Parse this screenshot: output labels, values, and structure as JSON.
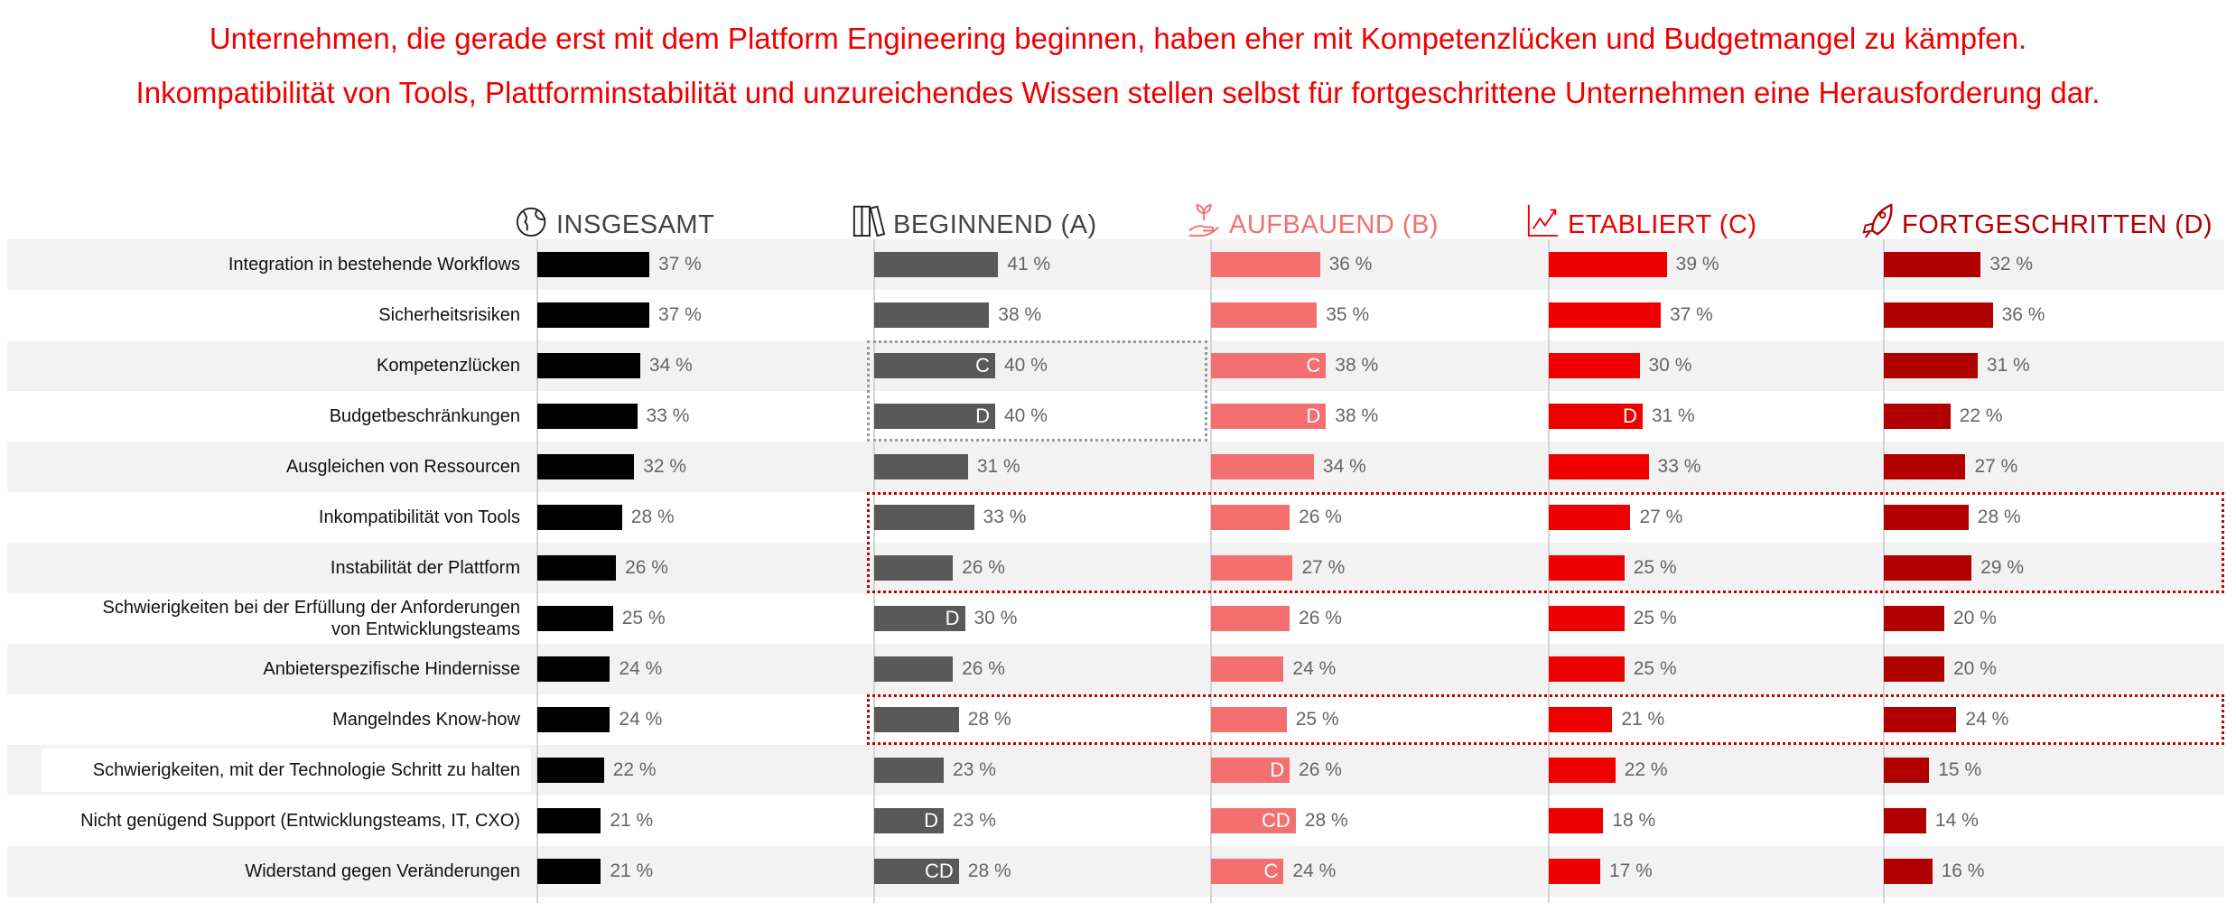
{
  "title_lines": [
    "Unternehmen, die gerade erst mit dem Platform Engineering beginnen, haben eher mit Kompetenzlücken und Budgetmangel zu kämpfen.",
    "Inkompatibilität von Tools, Plattforminstabilität und unzureichendes Wissen stellen selbst für fortgeschrittene Unternehmen eine Herausforderung dar."
  ],
  "colors": {
    "title": "#ee0000",
    "insgesamt": "#000000",
    "beginnend": "#595959",
    "aufbauend": "#f47070",
    "etabliert": "#ee0000",
    "fortgeschritten": "#b00000",
    "row_stripe": "#f2f2f2"
  },
  "chart_data": {
    "type": "bar",
    "orientation": "horizontal",
    "value_suffix": " %",
    "series": [
      {
        "name": "INSGESAMT",
        "icon": "globe-icon",
        "color": "#000000",
        "values": [
          37,
          37,
          34,
          33,
          32,
          28,
          26,
          25,
          24,
          24,
          22,
          21,
          21
        ],
        "markers": [
          "",
          "",
          "",
          "",
          "",
          "",
          "",
          "",
          "",
          "",
          "",
          "",
          ""
        ]
      },
      {
        "name": "BEGINNEND (A)",
        "icon": "books-icon",
        "color": "#595959",
        "values": [
          41,
          38,
          40,
          40,
          31,
          33,
          26,
          30,
          26,
          28,
          23,
          23,
          28
        ],
        "markers": [
          "",
          "",
          "C",
          "D",
          "",
          "",
          "",
          "D",
          "",
          "",
          "",
          "D",
          "CD"
        ]
      },
      {
        "name": "AUFBAUEND (B)",
        "icon": "sprout-hand-icon",
        "color": "#f47070",
        "values": [
          36,
          35,
          38,
          38,
          34,
          26,
          27,
          26,
          24,
          25,
          26,
          28,
          24
        ],
        "markers": [
          "",
          "",
          "C",
          "D",
          "",
          "",
          "",
          "",
          "",
          "",
          "D",
          "CD",
          "C"
        ]
      },
      {
        "name": "ETABLIERT (C)",
        "icon": "growth-chart-icon",
        "color": "#ee0000",
        "values": [
          39,
          37,
          30,
          31,
          33,
          27,
          25,
          25,
          25,
          21,
          22,
          18,
          17
        ],
        "markers": [
          "",
          "",
          "",
          "D",
          "",
          "",
          "",
          "",
          "",
          "",
          "",
          "",
          ""
        ]
      },
      {
        "name": "FORTGESCHRITTEN (D)",
        "icon": "rocket-icon",
        "color": "#b00000",
        "values": [
          32,
          36,
          31,
          22,
          27,
          28,
          29,
          20,
          20,
          24,
          15,
          14,
          16
        ],
        "markers": [
          "",
          "",
          "",
          "",
          "",
          "",
          "",
          "",
          "",
          "",
          "",
          "",
          ""
        ]
      }
    ],
    "categories": [
      "Integration in bestehende Workflows",
      "Sicherheitsrisiken",
      "Kompetenzlücken",
      "Budgetbeschränkungen",
      "Ausgleichen von Ressourcen",
      "Inkompatibilität von Tools",
      "Instabilität der Plattform",
      "Schwierigkeiten bei der Erfüllung der Anforderungen von Entwicklungsteams",
      "Anbieterspezifische Hindernisse",
      "Mangelndes Know-how",
      "Schwierigkeiten, mit der Technologie Schritt zu halten",
      "Nicht genügend Support (Entwicklungsteams, IT, CXO)",
      "Widerstand gegen Veränderungen"
    ],
    "highlights": [
      {
        "style": "gray-dotted",
        "categories": [
          "Kompetenzlücken",
          "Budgetbeschränkungen"
        ],
        "series": [
          "BEGINNEND (A)",
          "AUFBAUEND (B)"
        ]
      },
      {
        "style": "red-dotted",
        "categories": [
          "Inkompatibilität von Tools",
          "Instabilität der Plattform"
        ],
        "series": [
          "BEGINNEND (A)",
          "AUFBAUEND (B)",
          "ETABLIERT (C)",
          "FORTGESCHRITTEN (D)"
        ]
      },
      {
        "style": "red-dotted",
        "categories": [
          "Mangelndes Know-how"
        ],
        "series": [
          "BEGINNEND (A)",
          "AUFBAUEND (B)",
          "ETABLIERT (C)",
          "FORTGESCHRITTEN (D)"
        ]
      }
    ],
    "grid": false,
    "legend": "none"
  }
}
